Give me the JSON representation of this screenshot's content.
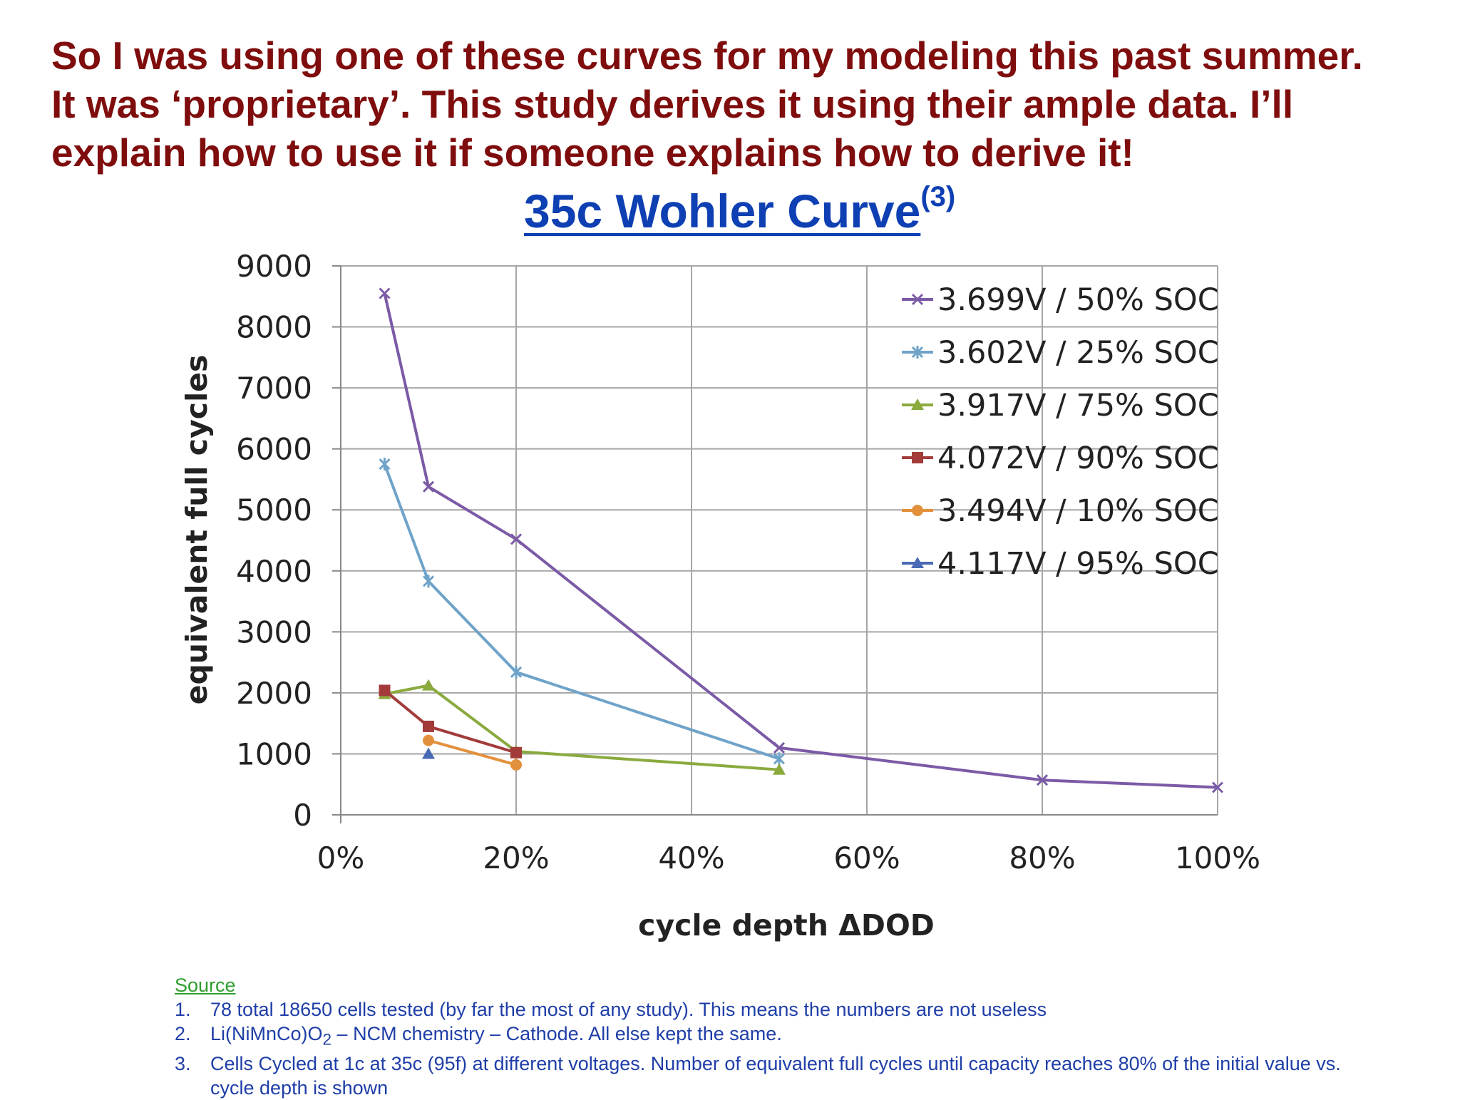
{
  "headline": [
    "So I was using one of these curves for my modeling this past summer.",
    "It was ‘proprietary’. This study derives it using their ample data. I’ll",
    "explain how to use it if someone explains how to derive it!"
  ],
  "chart_title": {
    "text": "35c Wohler Curve",
    "superscript": "(3)"
  },
  "chart_data": {
    "type": "line",
    "title": "35c Wohler Curve",
    "xlabel": "cycle depth ΔDOD",
    "ylabel": "equivalent full cycles",
    "xlim": [
      0,
      100
    ],
    "ylim": [
      0,
      9000
    ],
    "x_ticks": [
      {
        "value": 0,
        "label": "0%"
      },
      {
        "value": 20,
        "label": "20%"
      },
      {
        "value": 40,
        "label": "40%"
      },
      {
        "value": 60,
        "label": "60%"
      },
      {
        "value": 80,
        "label": "80%"
      },
      {
        "value": 100,
        "label": "100%"
      }
    ],
    "y_ticks": [
      {
        "value": 0,
        "label": "0"
      },
      {
        "value": 1000,
        "label": "1000"
      },
      {
        "value": 2000,
        "label": "2000"
      },
      {
        "value": 3000,
        "label": "3000"
      },
      {
        "value": 4000,
        "label": "4000"
      },
      {
        "value": 5000,
        "label": "5000"
      },
      {
        "value": 6000,
        "label": "6000"
      },
      {
        "value": 7000,
        "label": "7000"
      },
      {
        "value": 8000,
        "label": "8000"
      },
      {
        "value": 9000,
        "label": "9000"
      }
    ],
    "grid": true,
    "legend_position": "top-right",
    "series": [
      {
        "name": "3.699V / 50% SOC",
        "color": "#7b5aa6",
        "marker": "x",
        "points": [
          [
            5,
            8550
          ],
          [
            10,
            5380
          ],
          [
            20,
            4520
          ],
          [
            50,
            1100
          ],
          [
            80,
            570
          ],
          [
            100,
            450
          ]
        ]
      },
      {
        "name": "3.602V / 25% SOC",
        "color": "#6fa3c9",
        "marker": "star",
        "points": [
          [
            5,
            5750
          ],
          [
            10,
            3830
          ],
          [
            20,
            2340
          ],
          [
            50,
            920
          ]
        ]
      },
      {
        "name": "3.917V / 75% SOC",
        "color": "#8aaa3e",
        "marker": "triangle",
        "points": [
          [
            5,
            1980
          ],
          [
            10,
            2120
          ],
          [
            20,
            1040
          ],
          [
            50,
            740
          ]
        ]
      },
      {
        "name": "4.072V / 90% SOC",
        "color": "#a33b3b",
        "marker": "square",
        "points": [
          [
            5,
            2040
          ],
          [
            10,
            1450
          ],
          [
            20,
            1020
          ]
        ]
      },
      {
        "name": "3.494V / 10% SOC",
        "color": "#e3903d",
        "marker": "circle",
        "points": [
          [
            10,
            1220
          ],
          [
            20,
            820
          ]
        ]
      },
      {
        "name": "4.117V / 95% SOC",
        "color": "#4a6ab5",
        "marker": "triangle",
        "points": [
          [
            10,
            1000
          ]
        ]
      }
    ]
  },
  "notes": {
    "source_label": "Source",
    "items": [
      {
        "num": "1.",
        "text": "78 total 18650 cells tested (by far the most of any study). This means the numbers are not useless"
      },
      {
        "num": "2.",
        "text_before": "Li(NiMnCo)O",
        "sub": "2",
        "text_after": " – NCM chemistry – Cathode. All else kept the same."
      },
      {
        "num": "3.",
        "text": "Cells Cycled at 1c at 35c (95f) at different voltages. Number of equivalent full cycles until capacity reaches 80% of the initial value vs. cycle depth is shown"
      }
    ]
  }
}
